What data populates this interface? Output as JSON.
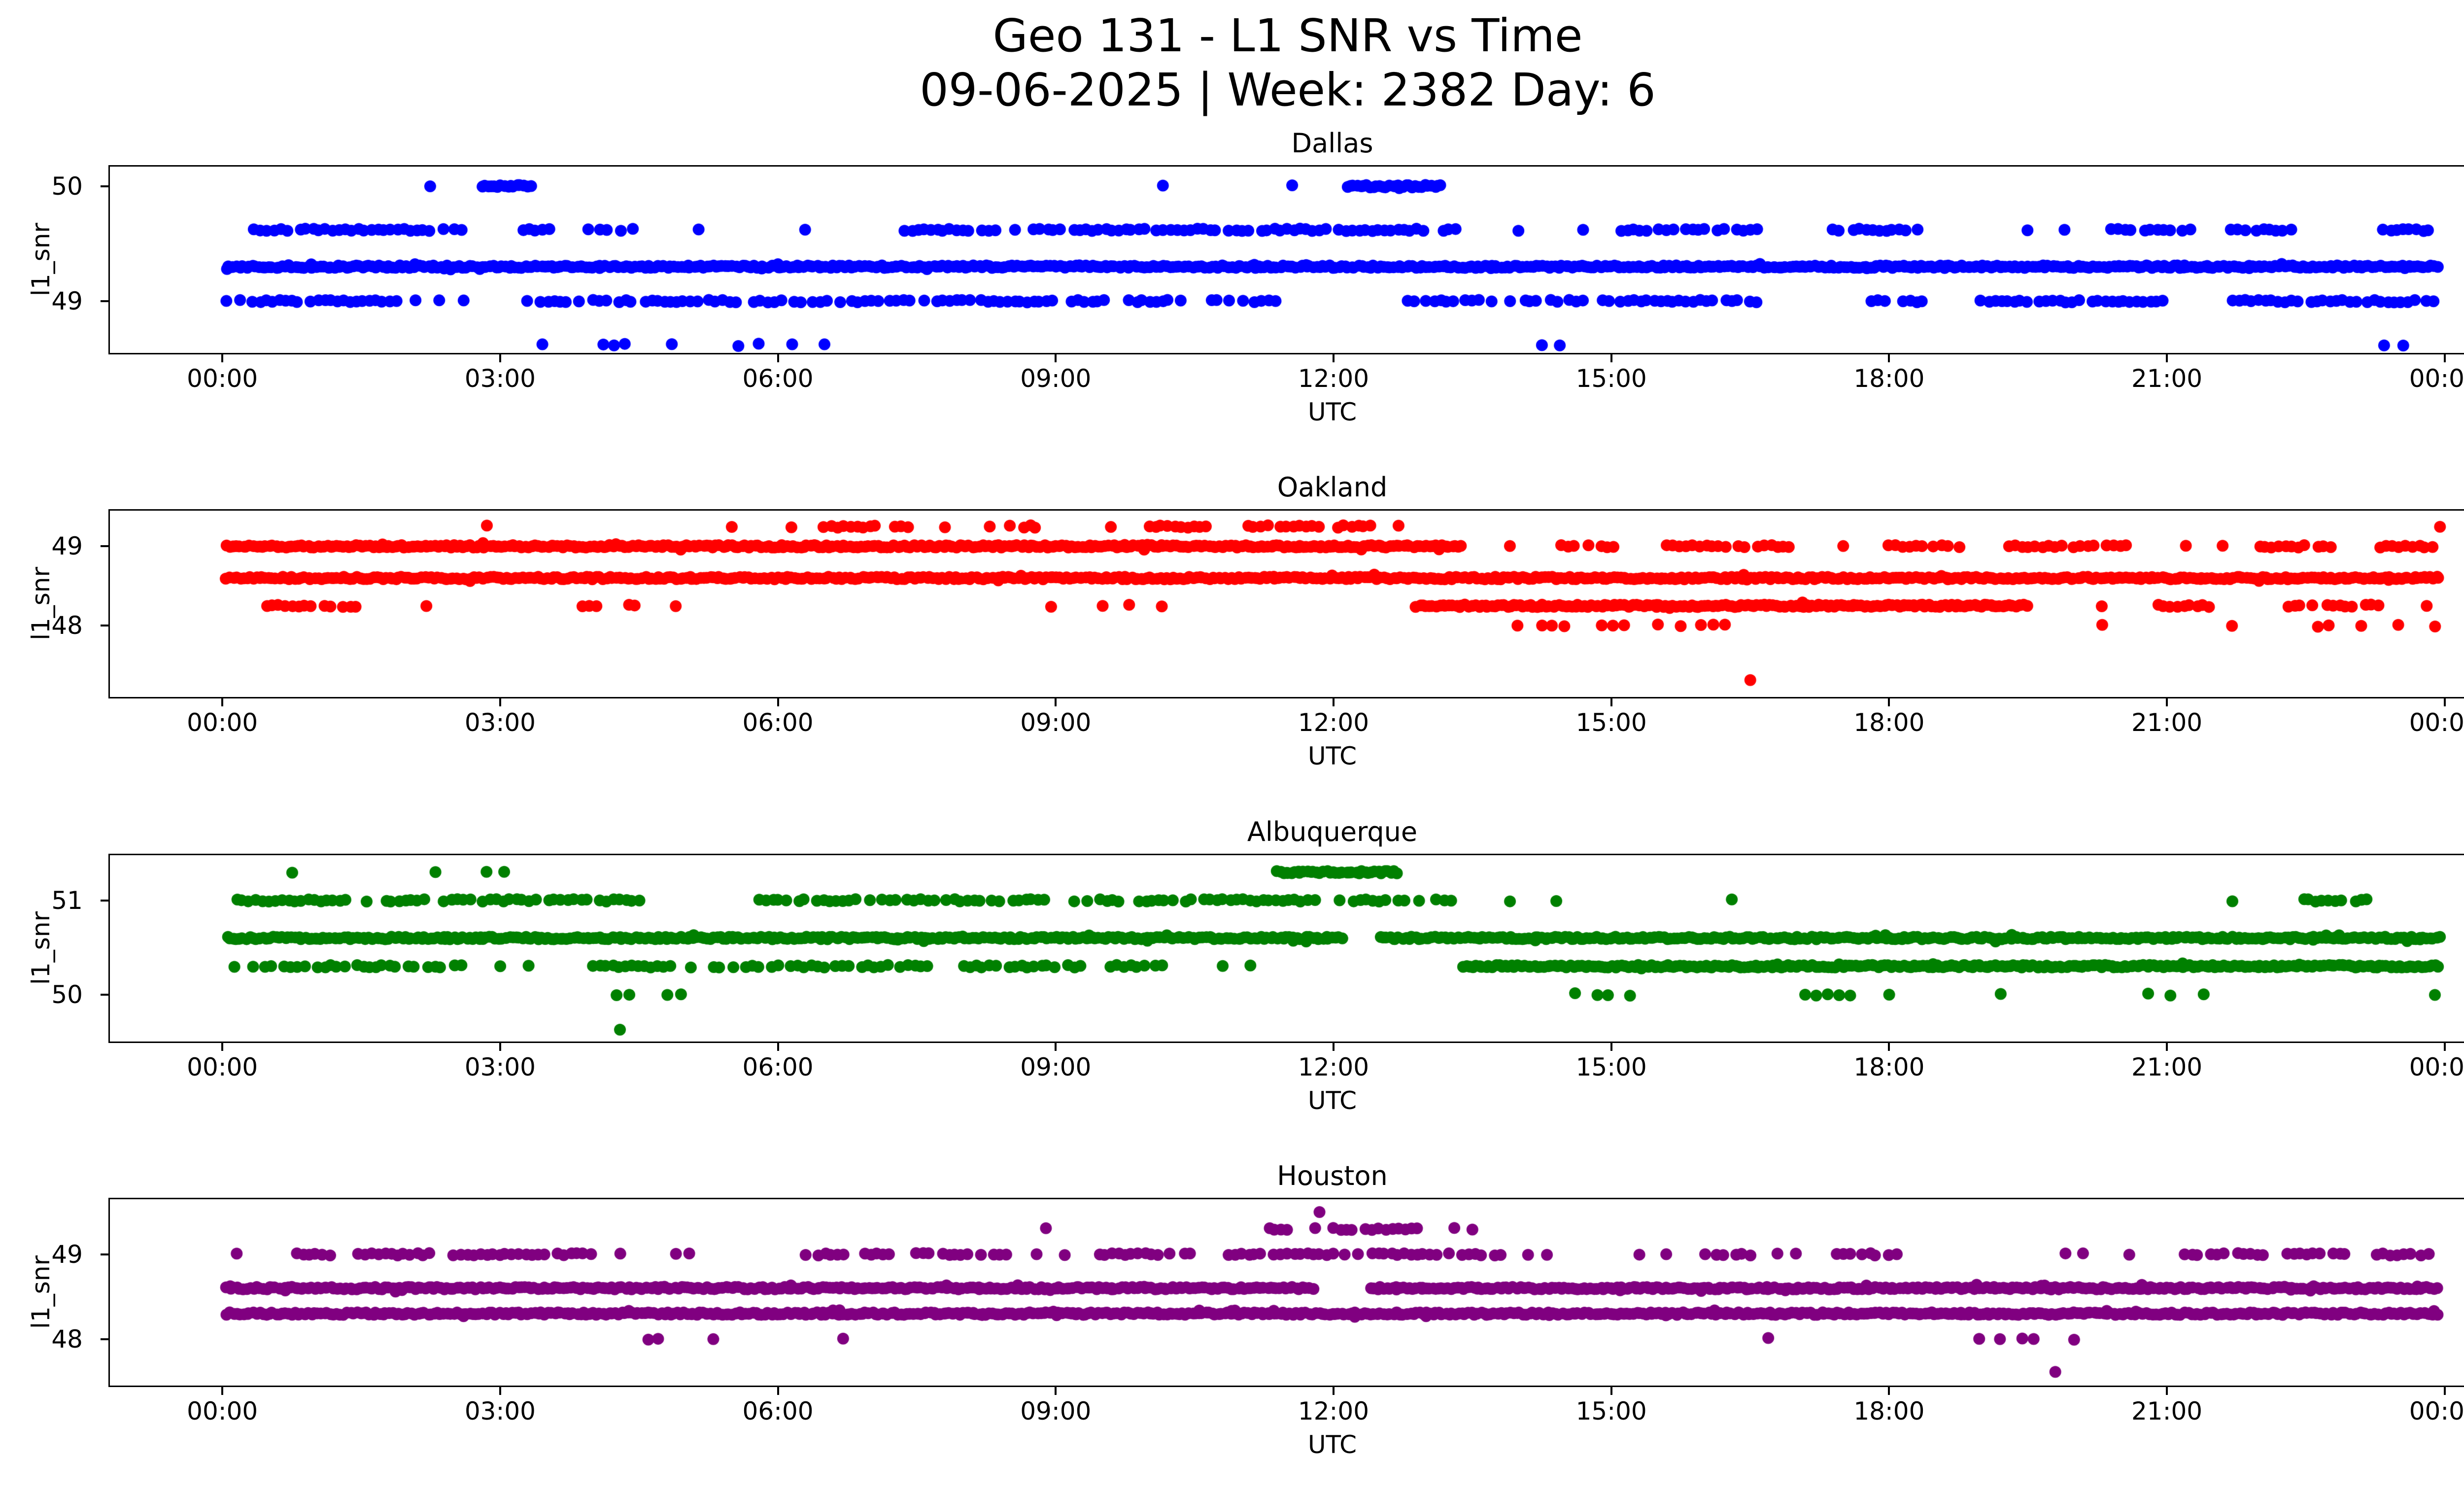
{
  "figure": {
    "title_line1": "Geo 131 - L1 SNR vs Time",
    "title_line2": "09-06-2025 | Week: 2382 Day: 6",
    "background": "#ffffff",
    "text_color": "#000000"
  },
  "chart_data": [
    {
      "type": "scatter",
      "title": "Dallas",
      "color": "#0000ff",
      "xlabel": "UTC",
      "ylabel": "l1_snr",
      "x_tick_hours": [
        0,
        3,
        6,
        9,
        12,
        15,
        18,
        21,
        24
      ],
      "x_tick_labels": [
        "00:00",
        "03:00",
        "06:00",
        "09:00",
        "12:00",
        "15:00",
        "18:00",
        "21:00",
        "00:00"
      ],
      "x_range_hours": [
        0,
        24
      ],
      "ylim": [
        48.55,
        50.17
      ],
      "y_ticks": [
        49,
        50
      ],
      "grid": false,
      "legend": "none",
      "marker_radius": 12,
      "series_bands": [
        {
          "snr": 50.0,
          "density": "dense",
          "segments": [
            [
              2.8,
              3.35
            ],
            [
              12.15,
              13.2
            ]
          ],
          "dots": [
            2.25,
            10.15,
            11.55
          ]
        },
        {
          "snr": 49.62,
          "density": "medium",
          "segments": [
            [
              0.35,
              2.6
            ],
            [
              3.25,
              3.55
            ],
            [
              3.95,
              4.45
            ],
            [
              7.3,
              13.35
            ],
            [
              15.1,
              16.6
            ],
            [
              17.4,
              18.35
            ],
            [
              20.4,
              21.3
            ],
            [
              21.7,
              22.35
            ],
            [
              23.2,
              23.9
            ]
          ],
          "dots": [
            5.15,
            6.3,
            14.0,
            14.7,
            19.5,
            19.9
          ]
        },
        {
          "snr": 49.3,
          "density": "dense",
          "segments": [
            [
              0.05,
              23.95
            ]
          ],
          "dots": []
        },
        {
          "snr": 49.0,
          "density": "medium",
          "segments": [
            [
              0.05,
              2.15
            ],
            [
              3.3,
              9.6
            ],
            [
              9.8,
              10.4
            ],
            [
              10.6,
              11.6
            ],
            [
              12.8,
              16.6
            ],
            [
              17.8,
              18.5
            ],
            [
              19.0,
              21.0
            ],
            [
              21.5,
              23.95
            ]
          ],
          "dots": [
            2.35,
            2.6
          ]
        },
        {
          "snr": 48.62,
          "density": "sparse",
          "segments": [
            [
              4.1,
              4.45
            ],
            [
              5.2,
              5.9
            ]
          ],
          "dots": [
            3.45,
            4.85,
            6.15,
            6.5,
            14.25,
            14.45,
            23.35,
            23.55
          ]
        }
      ]
    },
    {
      "type": "scatter",
      "title": "Oakland",
      "color": "#ff0000",
      "xlabel": "UTC",
      "ylabel": "l1_snr",
      "x_tick_hours": [
        0,
        3,
        6,
        9,
        12,
        15,
        18,
        21,
        24
      ],
      "x_tick_labels": [
        "00:00",
        "03:00",
        "06:00",
        "09:00",
        "12:00",
        "15:00",
        "18:00",
        "21:00",
        "00:00"
      ],
      "x_range_hours": [
        0,
        24
      ],
      "ylim": [
        47.1,
        49.45
      ],
      "y_ticks": [
        48,
        49
      ],
      "grid": false,
      "legend": "none",
      "marker_radius": 12,
      "series_bands": [
        {
          "snr": 49.25,
          "density": "medium",
          "segments": [
            [
              6.5,
              7.45
            ],
            [
              8.3,
              8.85
            ],
            [
              10.0,
              10.7
            ],
            [
              11.0,
              12.45
            ]
          ],
          "dots": [
            2.85,
            5.5,
            6.15,
            7.8,
            9.6,
            12.7,
            23.95
          ]
        },
        {
          "snr": 49.0,
          "density": "dense",
          "segments": [
            [
              0.05,
              13.4
            ]
          ],
          "dots": []
        },
        {
          "snr": 49.0,
          "density": "medium",
          "segments": [
            [
              14.4,
              15.1
            ],
            [
              15.6,
              17.0
            ],
            [
              18.0,
              18.8
            ],
            [
              19.3,
              20.6
            ],
            [
              22.0,
              22.9
            ],
            [
              23.3,
              23.95
            ]
          ],
          "dots": [
            13.9,
            17.5,
            21.2,
            21.6
          ]
        },
        {
          "snr": 48.6,
          "density": "dense",
          "segments": [
            [
              0.05,
              23.95
            ]
          ],
          "dots": []
        },
        {
          "snr": 48.25,
          "density": "dense",
          "segments": [
            [
              12.9,
              19.5
            ]
          ],
          "dots": []
        },
        {
          "snr": 48.25,
          "density": "medium",
          "segments": [
            [
              0.4,
              1.5
            ],
            [
              3.9,
              4.5
            ],
            [
              20.9,
              21.5
            ],
            [
              22.3,
              23.3
            ]
          ],
          "dots": [
            2.2,
            4.9,
            8.95,
            9.5,
            9.8,
            10.15,
            20.3,
            23.8
          ]
        },
        {
          "snr": 48.0,
          "density": "sparse",
          "segments": [
            [
              14.0,
              14.5
            ],
            [
              14.9,
              15.2
            ],
            [
              15.5,
              16.3
            ],
            [
              22.5,
              23.2
            ]
          ],
          "dots": [
            20.3,
            21.7,
            23.5,
            23.9
          ]
        },
        {
          "snr": 47.3,
          "density": "single",
          "segments": [],
          "dots": [
            16.5
          ]
        }
      ]
    },
    {
      "type": "scatter",
      "title": "Albuquerque",
      "color": "#008000",
      "xlabel": "UTC",
      "ylabel": "l1_snr",
      "x_tick_hours": [
        0,
        3,
        6,
        9,
        12,
        15,
        18,
        21,
        24
      ],
      "x_tick_labels": [
        "00:00",
        "03:00",
        "06:00",
        "09:00",
        "12:00",
        "15:00",
        "18:00",
        "21:00",
        "00:00"
      ],
      "x_range_hours": [
        0,
        24
      ],
      "ylim": [
        49.5,
        51.48
      ],
      "y_ticks": [
        50,
        51
      ],
      "grid": false,
      "legend": "none",
      "marker_radius": 12,
      "series_bands": [
        {
          "snr": 51.3,
          "density": "dense",
          "segments": [
            [
              11.4,
              12.7
            ]
          ],
          "dots": [
            0.75,
            2.3,
            2.85,
            3.05
          ]
        },
        {
          "snr": 51.0,
          "density": "medium",
          "segments": [
            [
              0.15,
              2.2
            ],
            [
              2.4,
              4.5
            ],
            [
              5.8,
              8.9
            ],
            [
              9.2,
              13.4
            ],
            [
              22.4,
              23.2
            ]
          ],
          "dots": [
            13.9,
            14.4,
            16.3,
            21.7
          ]
        },
        {
          "snr": 50.6,
          "density": "dense",
          "segments": [
            [
              0.05,
              12.1
            ],
            [
              12.5,
              23.95
            ]
          ],
          "dots": []
        },
        {
          "snr": 50.3,
          "density": "dense",
          "segments": [
            [
              13.4,
              23.95
            ]
          ],
          "dots": []
        },
        {
          "snr": 50.3,
          "density": "medium",
          "segments": [
            [
              0.05,
              2.6
            ],
            [
              4.0,
              5.1
            ],
            [
              5.3,
              7.8
            ],
            [
              8.0,
              9.3
            ],
            [
              9.6,
              10.3
            ]
          ],
          "dots": [
            3.0,
            3.3,
            10.8,
            11.1
          ]
        },
        {
          "snr": 50.0,
          "density": "sparse",
          "segments": [
            [
              14.6,
              15.2
            ],
            [
              17.1,
              17.6
            ],
            [
              20.8,
              21.1
            ]
          ],
          "dots": [
            4.25,
            4.4,
            4.8,
            4.95,
            18.0,
            19.2,
            21.4,
            23.9
          ]
        },
        {
          "snr": 49.62,
          "density": "single",
          "segments": [],
          "dots": [
            4.3
          ]
        }
      ]
    },
    {
      "type": "scatter",
      "title": "Houston",
      "color": "#800080",
      "xlabel": "UTC",
      "ylabel": "l1_snr",
      "x_tick_hours": [
        0,
        3,
        6,
        9,
        12,
        15,
        18,
        21,
        24
      ],
      "x_tick_labels": [
        "00:00",
        "03:00",
        "06:00",
        "09:00",
        "12:00",
        "15:00",
        "18:00",
        "21:00",
        "00:00"
      ],
      "x_range_hours": [
        0,
        24
      ],
      "ylim": [
        47.45,
        49.65
      ],
      "y_ticks": [
        48,
        49
      ],
      "grid": false,
      "legend": "none",
      "marker_radius": 12,
      "series_bands": [
        {
          "snr": 49.5,
          "density": "single",
          "segments": [],
          "dots": [
            11.85
          ]
        },
        {
          "snr": 49.3,
          "density": "medium",
          "segments": [
            [
              11.3,
              13.0
            ]
          ],
          "dots": [
            8.9,
            13.3,
            13.5
          ]
        },
        {
          "snr": 49.0,
          "density": "medium",
          "segments": [
            [
              0.8,
              1.2
            ],
            [
              1.4,
              2.3
            ],
            [
              2.5,
              4.0
            ],
            [
              6.3,
              8.5
            ],
            [
              9.4,
              10.5
            ],
            [
              10.8,
              13.9
            ],
            [
              16.0,
              16.5
            ],
            [
              17.3,
              18.1
            ],
            [
              21.2,
              22.1
            ],
            [
              22.3,
              23.0
            ],
            [
              23.2,
              23.9
            ]
          ],
          "dots": [
            0.15,
            4.3,
            4.9,
            5.05,
            8.8,
            9.1,
            14.1,
            14.3,
            15.3,
            15.6,
            16.8,
            17.0,
            19.9,
            20.1,
            20.6
          ]
        },
        {
          "snr": 48.6,
          "density": "dense",
          "segments": [
            [
              0.05,
              11.8
            ],
            [
              12.4,
              23.95
            ]
          ],
          "dots": []
        },
        {
          "snr": 48.3,
          "density": "dense",
          "segments": [
            [
              0.05,
              23.95
            ]
          ],
          "dots": []
        },
        {
          "snr": 48.0,
          "density": "sparse",
          "segments": [
            [
              4.6,
              5.0
            ],
            [
              18.6,
              19.0
            ],
            [
              19.2,
              19.6
            ]
          ],
          "dots": [
            5.3,
            6.7,
            16.7,
            20.0
          ]
        },
        {
          "snr": 47.6,
          "density": "single",
          "segments": [],
          "dots": [
            19.8
          ]
        }
      ]
    }
  ]
}
